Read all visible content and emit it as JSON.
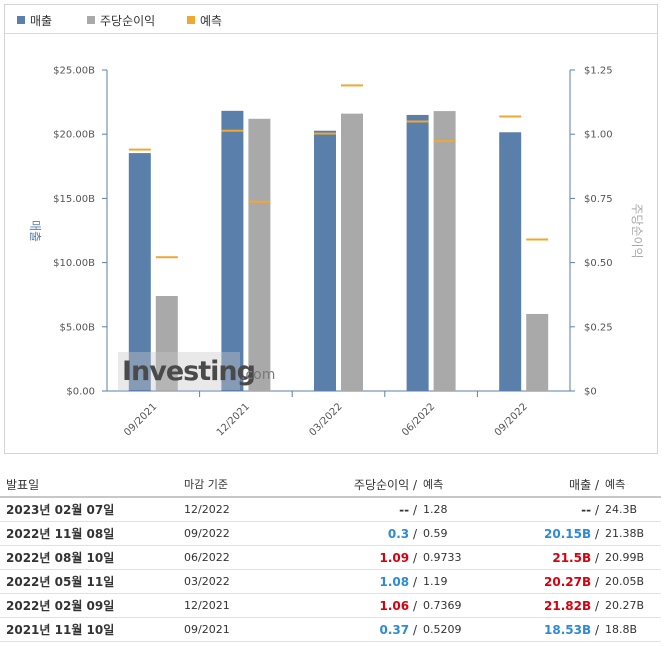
{
  "legend": [
    {
      "label": "매출",
      "color": "#5b7fab"
    },
    {
      "label": "주당순이익",
      "color": "#a9a9a9"
    },
    {
      "label": "예측",
      "color": "#f0a830"
    }
  ],
  "chart_data": {
    "type": "bar",
    "categories": [
      "09/2021",
      "12/2021",
      "03/2022",
      "06/2022",
      "09/2022"
    ],
    "series": [
      {
        "name": "매출",
        "axis": "left",
        "color": "#5b7fab",
        "values": [
          18.53,
          21.82,
          20.27,
          21.5,
          20.15
        ]
      },
      {
        "name": "주당순이익",
        "axis": "right",
        "color": "#a9a9a9",
        "values": [
          0.37,
          1.06,
          1.08,
          1.09,
          0.3
        ]
      }
    ],
    "forecast": [
      {
        "name": "예측",
        "of": "매출",
        "color": "#f0a830",
        "values": [
          18.8,
          20.27,
          20.05,
          20.99,
          21.38
        ]
      },
      {
        "name": "예측",
        "of": "주당순이익",
        "color": "#f0a830",
        "values": [
          0.5209,
          0.7369,
          1.19,
          0.9733,
          0.59
        ]
      }
    ],
    "ylabel_left": "매출",
    "ylabel_right": "주당순이익",
    "ylim_left": [
      0,
      25
    ],
    "ylim_right": [
      0,
      1.25
    ],
    "yticks_left": [
      "$0.00",
      "$5.00B",
      "$10.00B",
      "$15.00B",
      "$20.00B",
      "$25.00B"
    ],
    "yticks_right": [
      "$0",
      "$0.25",
      "$0.50",
      "$0.75",
      "$1.00",
      "$1.25"
    ],
    "grid": false,
    "legend_position": "top-left",
    "watermark": {
      "word": "Investing",
      "suffix": ".com"
    }
  },
  "table": {
    "headers": {
      "date": "발표일",
      "period": "마감 기준",
      "eps": "주당순이익",
      "eps_forecast": "예측",
      "revenue": "매출",
      "revenue_forecast": "예측",
      "slash": "/"
    },
    "rows": [
      {
        "date": "2023년 02월 07일",
        "period": "12/2022",
        "eps": "--",
        "eps_class": "neutral",
        "eps_forecast": "1.28",
        "revenue": "--",
        "rev_class": "neutral",
        "revenue_forecast": "24.3B"
      },
      {
        "date": "2022년 11월 08일",
        "period": "09/2022",
        "eps": "0.3",
        "eps_class": "green",
        "eps_forecast": "0.59",
        "revenue": "20.15B",
        "rev_class": "green",
        "revenue_forecast": "21.38B"
      },
      {
        "date": "2022년 08월 10일",
        "period": "06/2022",
        "eps": "1.09",
        "eps_class": "red",
        "eps_forecast": "0.9733",
        "revenue": "21.5B",
        "rev_class": "red",
        "revenue_forecast": "20.99B"
      },
      {
        "date": "2022년 05월 11일",
        "period": "03/2022",
        "eps": "1.08",
        "eps_class": "green",
        "eps_forecast": "1.19",
        "revenue": "20.27B",
        "rev_class": "red",
        "revenue_forecast": "20.05B"
      },
      {
        "date": "2022년 02월 09일",
        "period": "12/2021",
        "eps": "1.06",
        "eps_class": "red",
        "eps_forecast": "0.7369",
        "revenue": "21.82B",
        "rev_class": "red",
        "revenue_forecast": "20.27B"
      },
      {
        "date": "2021년 11월 10일",
        "period": "09/2021",
        "eps": "0.37",
        "eps_class": "green",
        "eps_forecast": "0.5209",
        "revenue": "18.53B",
        "rev_class": "green",
        "revenue_forecast": "18.8B"
      }
    ]
  }
}
